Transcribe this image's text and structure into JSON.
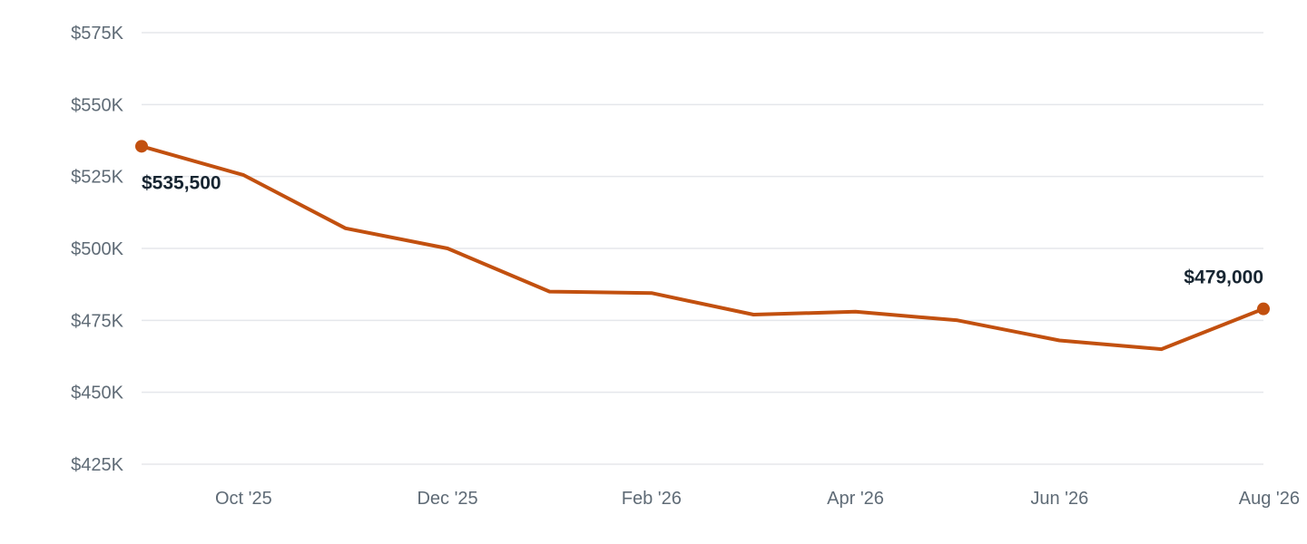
{
  "colors": {
    "series": "#c2500f",
    "grid": "#e5e7eb",
    "tick_text": "#5f6b76",
    "label_text": "#172531"
  },
  "chart_data": {
    "type": "line",
    "x": [
      "Sep '25",
      "Oct '25",
      "Nov '25",
      "Dec '25",
      "Jan '26",
      "Feb '26",
      "Mar '26",
      "Apr '26",
      "May '26",
      "Jun '26",
      "Jul '26",
      "Aug '26"
    ],
    "series": [
      {
        "values": [
          535500,
          525500,
          507000,
          500000,
          485000,
          484500,
          477000,
          478000,
          475000,
          468000,
          465000,
          479000
        ]
      }
    ],
    "x_tick_labels": [
      "Oct '25",
      "Dec '25",
      "Feb '26",
      "Apr '26",
      "Jun '26",
      "Aug '26"
    ],
    "y_ticks": [
      425000,
      450000,
      475000,
      500000,
      525000,
      550000,
      575000
    ],
    "y_tick_labels": [
      "$425K",
      "$450K",
      "$475K",
      "$500K",
      "$525K",
      "$550K",
      "$575K"
    ],
    "ylim": [
      425000,
      575000
    ],
    "grid": true,
    "annotations": {
      "start_label": "$535,500",
      "end_label": "$479,000"
    },
    "title": "",
    "xlabel": "",
    "ylabel": ""
  }
}
